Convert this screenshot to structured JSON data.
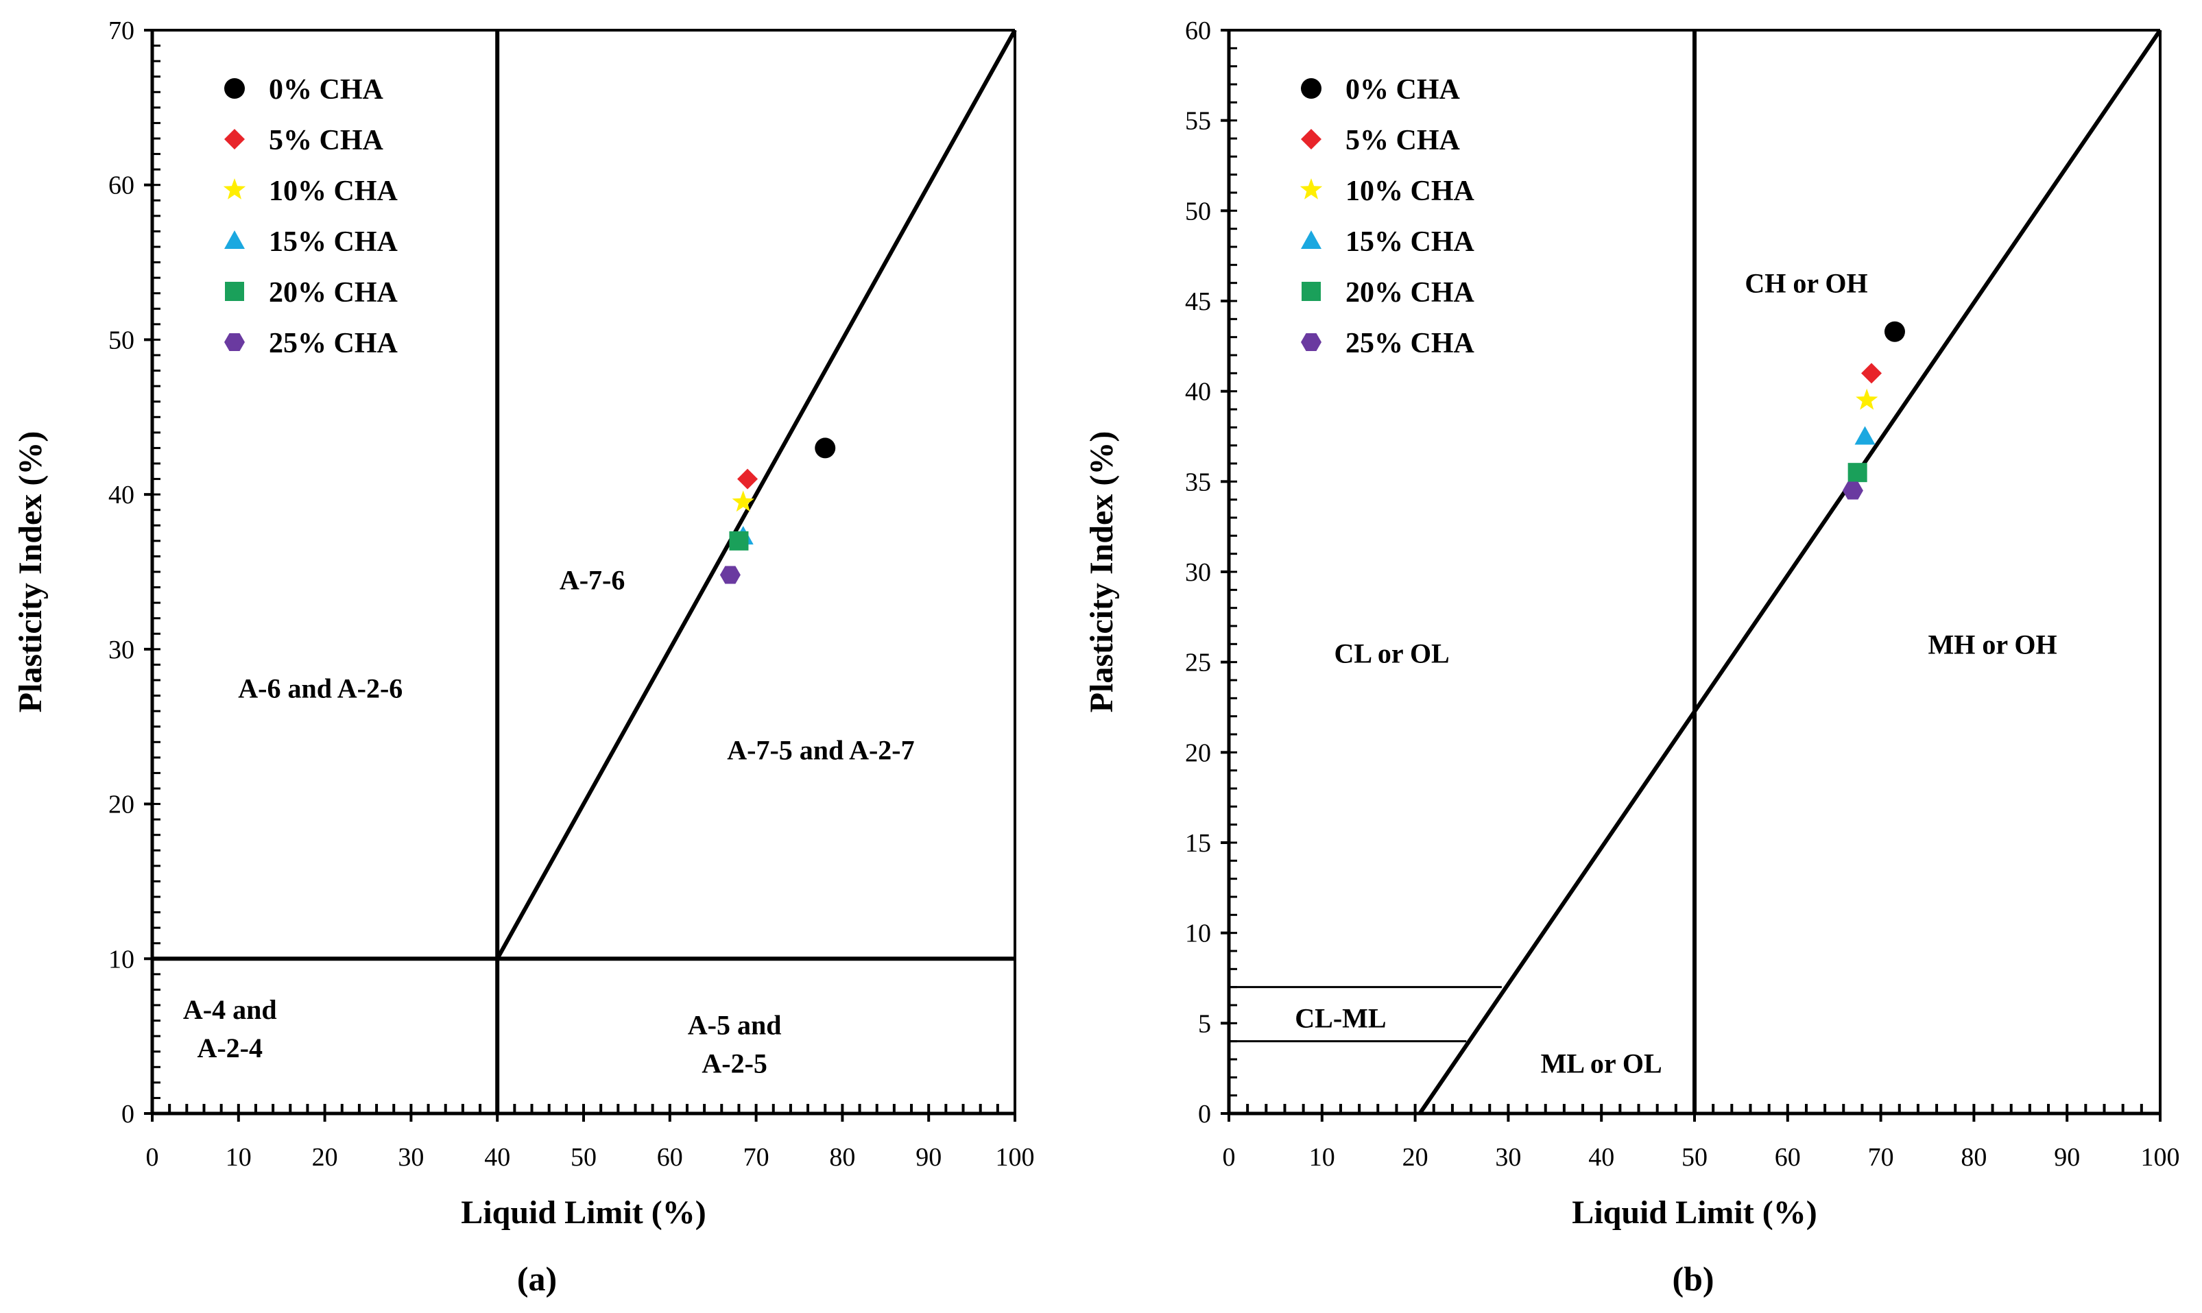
{
  "legend_colors": {
    "0% CHA": "#000000",
    "5% CHA": "#e8242a",
    "10% CHA": "#ffee00",
    "15% CHA": "#1ba8e0",
    "20% CHA": "#1aa05a",
    "25% CHA": "#6a3aa0"
  },
  "chart_data": [
    {
      "type": "scatter",
      "panel_label": "(a)",
      "title": "",
      "xlabel": "Liquid Limit (%)",
      "ylabel": "Plasticity Index (%)",
      "xlim": [
        0,
        100
      ],
      "ylim": [
        0,
        70
      ],
      "xticks": [
        0,
        10,
        20,
        30,
        40,
        50,
        60,
        70,
        80,
        90,
        100
      ],
      "yticks": [
        0,
        10,
        20,
        30,
        40,
        50,
        60,
        70
      ],
      "legend_position": "top-left",
      "series": [
        {
          "name": "0% CHA",
          "marker": "circle",
          "x": [
            78
          ],
          "y": [
            43
          ]
        },
        {
          "name": "5% CHA",
          "marker": "diamond",
          "x": [
            69
          ],
          "y": [
            41
          ]
        },
        {
          "name": "10% CHA",
          "marker": "star",
          "x": [
            68.5
          ],
          "y": [
            39.5
          ]
        },
        {
          "name": "15% CHA",
          "marker": "triangle",
          "x": [
            68.5
          ],
          "y": [
            37.3
          ]
        },
        {
          "name": "20% CHA",
          "marker": "square",
          "x": [
            68
          ],
          "y": [
            37
          ]
        },
        {
          "name": "25% CHA",
          "marker": "hexagon",
          "x": [
            67
          ],
          "y": [
            34.8
          ]
        }
      ],
      "boundary_lines": [
        {
          "name": "ll-40-line",
          "x": [
            40,
            40
          ],
          "y": [
            0,
            70
          ]
        },
        {
          "name": "pi-10-line",
          "x": [
            0,
            100
          ],
          "y": [
            10,
            10
          ]
        },
        {
          "name": "a7-divider",
          "x": [
            40,
            100
          ],
          "y": [
            10,
            70
          ]
        }
      ],
      "regions": [
        {
          "name": "region-a-7-6",
          "lines": [
            "A-7-6"
          ],
          "x": 51,
          "y": 34.5
        },
        {
          "name": "region-a-6-a-2-6",
          "lines": [
            "A-6 and A-2-6"
          ],
          "x": 19.5,
          "y": 27.5
        },
        {
          "name": "region-a-7-5-a-2-7",
          "lines": [
            "A-7-5 and A-2-7"
          ],
          "x": 77.5,
          "y": 23.5
        },
        {
          "name": "region-a-4-a-2-4",
          "lines": [
            "A-4 and",
            "A-2-4"
          ],
          "x": 9,
          "y": 5.5
        },
        {
          "name": "region-a-5-a-2-5",
          "lines": [
            "A-5 and",
            "A-2-5"
          ],
          "x": 67.5,
          "y": 4.5
        }
      ]
    },
    {
      "type": "scatter",
      "panel_label": "(b)",
      "title": "",
      "xlabel": "Liquid Limit (%)",
      "ylabel": "Plasticity Index (%)",
      "xlim": [
        0,
        100
      ],
      "ylim": [
        0,
        60
      ],
      "xticks": [
        0,
        10,
        20,
        30,
        40,
        50,
        60,
        70,
        80,
        90,
        100
      ],
      "yticks": [
        0,
        5,
        10,
        15,
        20,
        25,
        30,
        35,
        40,
        45,
        50,
        55,
        60
      ],
      "legend_position": "top-left",
      "series": [
        {
          "name": "0% CHA",
          "marker": "circle",
          "x": [
            71.5
          ],
          "y": [
            43.3
          ]
        },
        {
          "name": "5% CHA",
          "marker": "diamond",
          "x": [
            69
          ],
          "y": [
            41
          ]
        },
        {
          "name": "10% CHA",
          "marker": "star",
          "x": [
            68.5
          ],
          "y": [
            39.5
          ]
        },
        {
          "name": "15% CHA",
          "marker": "triangle",
          "x": [
            68.3
          ],
          "y": [
            37.5
          ]
        },
        {
          "name": "20% CHA",
          "marker": "square",
          "x": [
            67.5
          ],
          "y": [
            35.5
          ]
        },
        {
          "name": "25% CHA",
          "marker": "hexagon",
          "x": [
            67
          ],
          "y": [
            34.5
          ]
        }
      ],
      "boundary_lines": [
        {
          "name": "ll-50-line",
          "x": [
            50,
            50
          ],
          "y": [
            0,
            60
          ]
        },
        {
          "name": "a-line",
          "x": [
            20.5,
            100
          ],
          "y": [
            0,
            60
          ]
        },
        {
          "name": "cl-ml-upper-line",
          "x": [
            0,
            29.3
          ],
          "y": [
            7,
            7
          ]
        },
        {
          "name": "cl-ml-lower-line",
          "x": [
            0,
            25.5
          ],
          "y": [
            4,
            4
          ]
        }
      ],
      "regions": [
        {
          "name": "region-ch-oh",
          "lines": [
            "CH or OH"
          ],
          "x": 62,
          "y": 46
        },
        {
          "name": "region-cl-ol",
          "lines": [
            "CL or OL"
          ],
          "x": 17.5,
          "y": 25.5
        },
        {
          "name": "region-mh-oh",
          "lines": [
            "MH or OH"
          ],
          "x": 82,
          "y": 26
        },
        {
          "name": "region-cl-ml",
          "lines": [
            "CL-ML"
          ],
          "x": 12,
          "y": 5.3
        },
        {
          "name": "region-ml-ol",
          "lines": [
            "ML or OL"
          ],
          "x": 40,
          "y": 2.8
        }
      ]
    }
  ]
}
